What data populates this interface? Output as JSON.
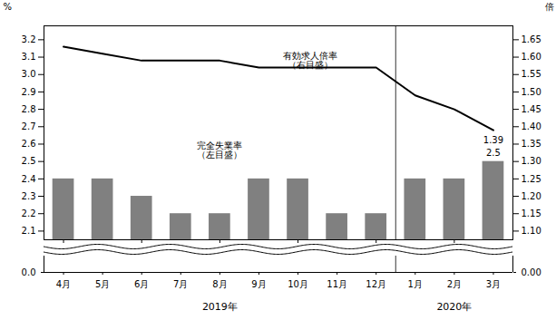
{
  "chart_data": [
    {
      "type": "bar",
      "categories": [
        "4月",
        "5月",
        "6月",
        "7月",
        "8月",
        "9月",
        "10月",
        "11月",
        "12月",
        "1月",
        "2月",
        "3月"
      ],
      "series": [
        {
          "name": "完全失業率\n（左目盛）",
          "type": "bar",
          "color": "#808080",
          "values": [
            2.4,
            2.4,
            2.3,
            2.2,
            2.2,
            2.4,
            2.4,
            2.2,
            2.2,
            2.4,
            2.4,
            2.5
          ]
        },
        {
          "name": "有効求人倍率\n（右目盛）",
          "type": "line",
          "color": "#000000",
          "axis": "y2",
          "values": [
            1.63,
            1.61,
            1.59,
            1.59,
            1.59,
            1.57,
            1.57,
            1.57,
            1.57,
            1.49,
            1.45,
            1.39
          ]
        }
      ],
      "ylabel": "%",
      "y2label": "倍",
      "ylim": [
        2.05,
        3.28
      ],
      "yticks": [
        2.1,
        2.2,
        2.3,
        2.4,
        2.5,
        2.6,
        2.7,
        2.8,
        2.9,
        {
          "value": 3.0,
          "label": "3.0"
        },
        3.1,
        3.2
      ],
      "y2lim": [
        1.075,
        1.69
      ],
      "y2ticks": [
        {
          "value": 1.1,
          "label": "1.10"
        },
        1.15,
        {
          "value": 1.2,
          "label": "1.20"
        },
        1.25,
        {
          "value": 1.3,
          "label": "1.30"
        },
        1.35,
        {
          "value": 1.4,
          "label": "1.40"
        },
        1.45,
        {
          "value": 1.5,
          "label": "1.50"
        },
        1.55,
        {
          "value": 1.6,
          "label": "1.60"
        },
        1.65
      ],
      "tick_labels": "y",
      "annotations": [
        {
          "text": "2.5",
          "category": "3月",
          "value": 2.5
        },
        {
          "text": "1.39",
          "category": "3月",
          "value": 1.39,
          "axis": "y2"
        }
      ]
    },
    {
      "type": "axis",
      "categories": [
        "4月",
        "5月",
        "6月",
        "7月",
        "8月",
        "9月",
        "10月",
        "11月",
        "12月",
        "1月",
        "2月",
        "3月"
      ],
      "ylim": [
        0,
        1
      ],
      "yticks": [
        {
          "value": 0,
          "label": "0.0"
        }
      ],
      "y2lim": [
        0,
        1
      ],
      "y2ticks": [
        {
          "value": 0,
          "label": "0.00"
        }
      ],
      "x_groups": [
        {
          "label": "2019年",
          "from": "4月",
          "to": "12月"
        },
        {
          "label": "2020年",
          "from": "1月",
          "to": "3月"
        }
      ]
    }
  ]
}
